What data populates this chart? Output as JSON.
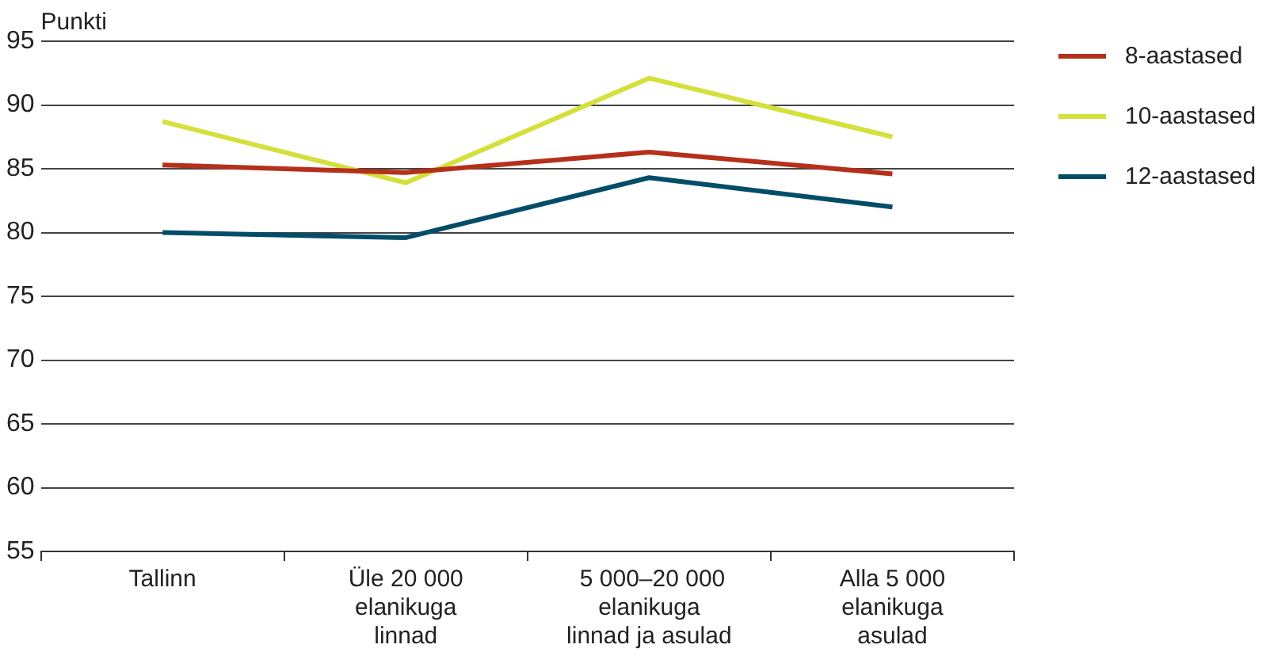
{
  "chart_data": {
    "type": "line",
    "ylabel": "Punkti",
    "categories": [
      "Tallinn",
      "Üle 20 000\nelanikuga\nlinnad",
      " 5 000–20 000\nelanikuga\nlinnad ja asulad",
      "Alla 5 000\nelanikuga\nasulad"
    ],
    "series": [
      {
        "name": "8-aastased",
        "color": "#b5301a",
        "values": [
          85.3,
          84.7,
          86.3,
          84.6
        ]
      },
      {
        "name": "10-aastased",
        "color": "#d4e03c",
        "values": [
          88.7,
          83.9,
          92.1,
          87.5
        ]
      },
      {
        "name": "12-aastased",
        "color": "#034d68",
        "values": [
          80.0,
          79.6,
          84.3,
          82.0
        ]
      }
    ],
    "ylim": [
      55,
      95
    ],
    "yticks": [
      55,
      60,
      65,
      70,
      75,
      80,
      85,
      90,
      95
    ],
    "grid": "y",
    "legend": "top right",
    "marker": "none",
    "line_style": "solid"
  }
}
